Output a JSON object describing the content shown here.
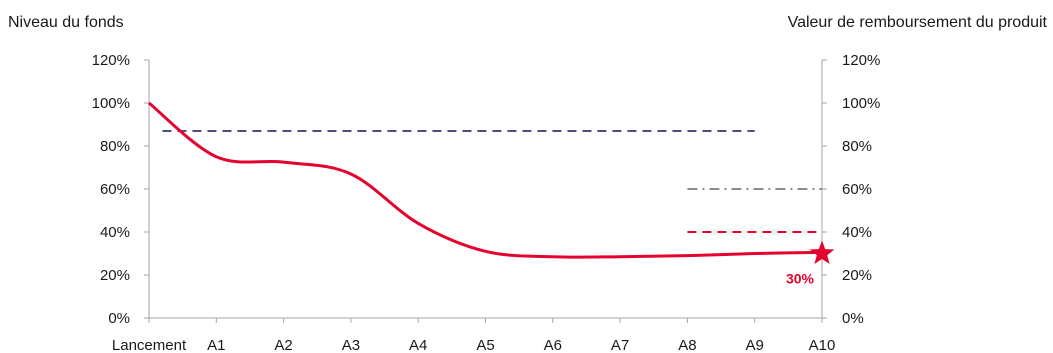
{
  "chart_data": {
    "type": "line",
    "left_axis_title": "Niveau du fonds",
    "right_axis_title": "Valeur de remboursement du produit",
    "categories": [
      "Lancement",
      "A1",
      "A2",
      "A3",
      "A4",
      "A5",
      "A6",
      "A7",
      "A8",
      "A9",
      "A10"
    ],
    "y_ticks": [
      "0%",
      "20%",
      "40%",
      "60%",
      "80%",
      "100%",
      "120%"
    ],
    "ylim": [
      0,
      120
    ],
    "grid": false,
    "series": [
      {
        "values": [
          100,
          75,
          72.5,
          67,
          44,
          31,
          28.5,
          28.5,
          29,
          30,
          30.5
        ],
        "color": "#e4032e",
        "style": "solid"
      }
    ],
    "reference_lines": [
      {
        "value": 87,
        "from": "Lancement",
        "to": "A9",
        "color": "#4d4f7f",
        "style": "dashed",
        "x_start": 0.2
      },
      {
        "value": 60,
        "from": "A8",
        "to": "A10",
        "color": "#8c8c8c",
        "style": "dash-dot"
      },
      {
        "value": 40,
        "from": "A8",
        "to": "A10",
        "color": "#e4032e",
        "style": "dashed"
      }
    ],
    "end_marker": {
      "category": "A10",
      "value": 30,
      "label": "30%",
      "color": "#e4032e",
      "icon": "star-icon"
    }
  }
}
